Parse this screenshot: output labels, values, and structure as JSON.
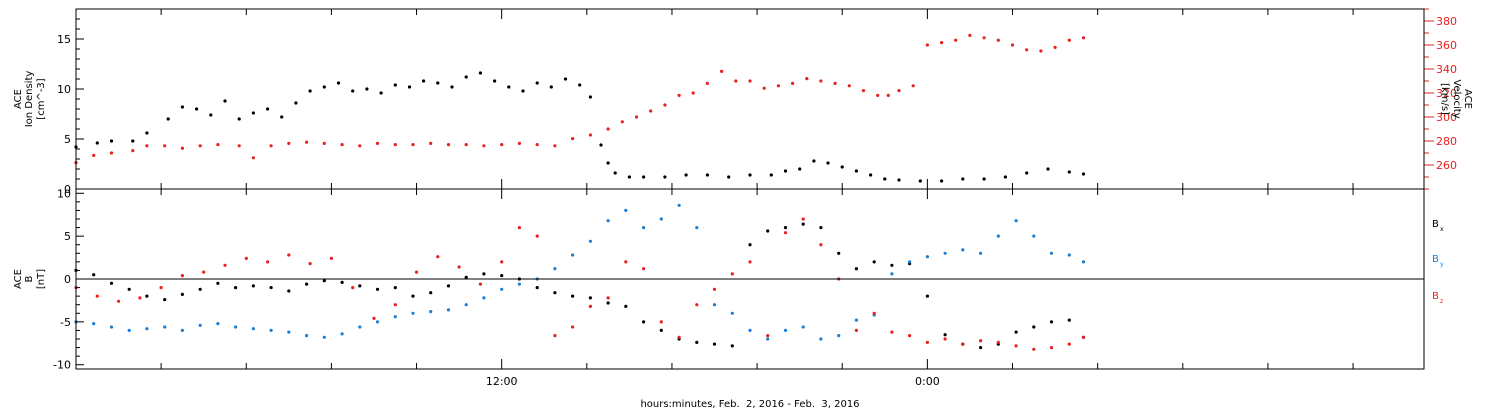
{
  "colors": {
    "black": "#000000",
    "red": "#e8211f",
    "blue": "#1b7fd6"
  },
  "chart_data": [
    {
      "type": "scatter",
      "title": "",
      "xlabel": "hours:minutes, Feb.  2, 2016 - Feb.  3, 2016",
      "x_unit": "hours since 2016-02-02 00:00",
      "x_range": [
        0,
        38
      ],
      "x_major_ticks": [
        {
          "x": 12,
          "label": "12:00"
        },
        {
          "x": 24,
          "label": "0:00"
        }
      ],
      "x_minor_ticks": [
        2.4,
        4.8,
        7.2,
        9.6,
        14.4,
        16.8,
        19.2,
        21.6,
        26.4,
        28.8,
        31.2,
        33.6,
        36.0
      ],
      "left_axis": {
        "label_lines": [
          "ACE",
          "Ion Density",
          "[cm^-3]"
        ],
        "unit": "cm^-3",
        "range": [
          0,
          18
        ],
        "ticks": [
          0,
          5,
          10,
          15
        ]
      },
      "right_axis": {
        "label_lines": [
          "ACE",
          "Velocity",
          "[km/s]"
        ],
        "unit": "km/s",
        "range": [
          240,
          390
        ],
        "ticks": [
          260,
          280,
          300,
          320,
          340,
          360,
          380
        ]
      },
      "series": [
        {
          "name": "Ion Density",
          "axis": "left",
          "color": "#000000",
          "x": [
            0.0,
            0.6,
            1.0,
            1.6,
            2.0,
            2.6,
            3.0,
            3.4,
            3.8,
            4.2,
            4.6,
            5.0,
            5.4,
            5.8,
            6.2,
            6.6,
            7.0,
            7.4,
            7.8,
            8.2,
            8.6,
            9.0,
            9.4,
            9.8,
            10.2,
            10.6,
            11.0,
            11.4,
            11.8,
            12.2,
            12.6,
            13.0,
            13.4,
            13.8,
            14.2,
            14.5,
            14.8,
            15.0,
            15.2,
            15.6,
            16.0,
            16.6,
            17.2,
            17.8,
            18.4,
            19.0,
            19.6,
            20.0,
            20.4,
            20.8,
            21.2,
            21.6,
            22.0,
            22.4,
            22.8,
            23.2,
            23.8,
            24.4,
            25.0,
            25.6,
            26.2,
            26.8,
            27.4,
            28.0,
            28.4
          ],
          "y": [
            4.2,
            4.6,
            4.8,
            4.8,
            5.6,
            7.0,
            8.2,
            8.0,
            7.4,
            8.8,
            7.0,
            7.6,
            8.0,
            7.2,
            8.6,
            9.8,
            10.2,
            10.6,
            9.8,
            10.0,
            9.6,
            10.4,
            10.2,
            10.8,
            10.6,
            10.2,
            11.2,
            11.6,
            10.8,
            10.2,
            9.8,
            10.6,
            10.2,
            11.0,
            10.4,
            9.2,
            4.4,
            2.6,
            1.6,
            1.2,
            1.2,
            1.2,
            1.4,
            1.4,
            1.2,
            1.4,
            1.4,
            1.8,
            2.0,
            2.8,
            2.6,
            2.2,
            1.8,
            1.4,
            1.0,
            0.9,
            0.8,
            0.8,
            1.0,
            1.0,
            1.2,
            1.6,
            2.0,
            1.7,
            1.5
          ]
        },
        {
          "name": "Velocity",
          "axis": "right",
          "color": "#e8211f",
          "x": [
            0.0,
            0.5,
            1.0,
            1.6,
            2.0,
            2.5,
            3.0,
            3.5,
            4.0,
            4.6,
            5.0,
            5.5,
            6.0,
            6.5,
            7.0,
            7.5,
            8.0,
            8.5,
            9.0,
            9.5,
            10.0,
            10.5,
            11.0,
            11.5,
            12.0,
            12.5,
            13.0,
            13.5,
            14.0,
            14.5,
            15.0,
            15.4,
            15.8,
            16.2,
            16.6,
            17.0,
            17.4,
            17.8,
            18.2,
            18.6,
            19.0,
            19.4,
            19.8,
            20.2,
            20.6,
            21.0,
            21.4,
            21.8,
            22.2,
            22.6,
            22.9,
            23.2,
            23.6,
            24.0,
            24.4,
            24.8,
            25.2,
            25.6,
            26.0,
            26.4,
            26.8,
            27.2,
            27.6,
            28.0,
            28.4
          ],
          "y": [
            262,
            268,
            270,
            272,
            276,
            276,
            274,
            276,
            277,
            276,
            266,
            276,
            278,
            279,
            278,
            277,
            276,
            278,
            277,
            277,
            278,
            277,
            277,
            276,
            277,
            278,
            277,
            276,
            282,
            285,
            290,
            296,
            300,
            305,
            310,
            318,
            320,
            328,
            338,
            330,
            330,
            324,
            326,
            328,
            332,
            330,
            328,
            326,
            322,
            318,
            318,
            322,
            326,
            360,
            362,
            364,
            368,
            366,
            364,
            360,
            356,
            355,
            358,
            364,
            366
          ]
        }
      ]
    },
    {
      "type": "scatter",
      "title": "",
      "xlabel": "hours:minutes, Feb.  2, 2016 - Feb.  3, 2016",
      "x_unit": "hours since 2016-02-02 00:00",
      "x_range": [
        0,
        38
      ],
      "x_major_ticks": [
        {
          "x": 12,
          "label": "12:00"
        },
        {
          "x": 24,
          "label": "0:00"
        }
      ],
      "x_minor_ticks": [
        2.4,
        4.8,
        7.2,
        9.6,
        14.4,
        16.8,
        19.2,
        21.6,
        26.4,
        28.8,
        31.2,
        33.6,
        36.0
      ],
      "y_axis": {
        "label_lines": [
          "ACE",
          "B",
          "[nT]"
        ],
        "unit": "nT",
        "range": [
          -10.5,
          10.5
        ],
        "ticks": [
          -10,
          -5,
          0,
          5,
          10
        ],
        "zero_line": true
      },
      "legend": {
        "placement": "right",
        "entries": [
          "Bx",
          "By",
          "Bz"
        ]
      },
      "series": [
        {
          "name": "Bx",
          "color": "#000000",
          "x": [
            0.0,
            0.5,
            1.0,
            1.5,
            2.0,
            2.5,
            3.0,
            3.5,
            4.0,
            4.5,
            5.0,
            5.5,
            6.0,
            6.5,
            7.0,
            7.5,
            8.0,
            8.5,
            9.0,
            9.5,
            10.0,
            10.5,
            11.0,
            11.5,
            12.0,
            12.5,
            13.0,
            13.5,
            14.0,
            14.5,
            15.0,
            15.5,
            16.0,
            16.5,
            17.0,
            17.5,
            18.0,
            18.5,
            19.0,
            19.5,
            20.0,
            20.5,
            21.0,
            21.5,
            22.0,
            22.5,
            23.0,
            23.5,
            24.0,
            24.5,
            25.0,
            25.5,
            26.0,
            26.5,
            27.0,
            27.5,
            28.0,
            28.4
          ],
          "y": [
            1.0,
            0.5,
            -0.5,
            -1.2,
            -2.0,
            -2.4,
            -1.8,
            -1.2,
            -0.5,
            -1.0,
            -0.8,
            -1.0,
            -1.4,
            -0.6,
            -0.2,
            -0.4,
            -0.8,
            -1.2,
            -1.0,
            -2.0,
            -1.6,
            -0.8,
            0.2,
            0.6,
            0.4,
            0.0,
            -1.0,
            -1.6,
            -2.0,
            -2.2,
            -2.8,
            -3.2,
            -5.0,
            -6.0,
            -7.0,
            -7.4,
            -7.6,
            -7.8,
            4.0,
            5.6,
            6.0,
            6.4,
            6.0,
            3.0,
            1.2,
            2.0,
            1.6,
            1.8,
            -2.0,
            -6.5,
            -7.6,
            -8.0,
            -7.6,
            -6.2,
            -5.6,
            -5.0,
            -4.8,
            -6.8
          ]
        },
        {
          "name": "By",
          "color": "#1b7fd6",
          "x": [
            0.0,
            0.5,
            1.0,
            1.5,
            2.0,
            2.5,
            3.0,
            3.5,
            4.0,
            4.5,
            5.0,
            5.5,
            6.0,
            6.5,
            7.0,
            7.5,
            8.0,
            8.5,
            9.0,
            9.5,
            10.0,
            10.5,
            11.0,
            11.5,
            12.0,
            12.5,
            13.0,
            13.5,
            14.0,
            14.5,
            15.0,
            15.5,
            16.0,
            16.5,
            17.0,
            17.5,
            18.0,
            18.5,
            19.0,
            19.5,
            20.0,
            20.5,
            21.0,
            21.5,
            22.0,
            22.5,
            23.0,
            23.5,
            24.0,
            24.5,
            25.0,
            25.5,
            26.0,
            26.5,
            27.0,
            27.5,
            28.0,
            28.4
          ],
          "y": [
            -5.0,
            -5.2,
            -5.6,
            -6.0,
            -5.8,
            -5.6,
            -6.0,
            -5.4,
            -5.2,
            -5.6,
            -5.8,
            -6.0,
            -6.2,
            -6.6,
            -6.8,
            -6.4,
            -5.6,
            -5.0,
            -4.4,
            -4.0,
            -3.8,
            -3.6,
            -3.0,
            -2.2,
            -1.2,
            -0.6,
            0.0,
            1.2,
            2.8,
            4.4,
            6.8,
            8.0,
            6.0,
            7.0,
            8.6,
            6.0,
            -3.0,
            -4.0,
            -6.0,
            -7.0,
            -6.0,
            -5.6,
            -7.0,
            -6.6,
            -4.8,
            -4.2,
            0.6,
            2.0,
            2.6,
            3.0,
            3.4,
            3.0,
            5.0,
            6.8,
            5.0,
            3.0,
            2.8,
            2.0
          ]
        },
        {
          "name": "Bz",
          "color": "#e8211f",
          "x": [
            0.0,
            0.6,
            1.2,
            1.8,
            2.4,
            3.0,
            3.6,
            4.2,
            4.8,
            5.4,
            6.0,
            6.6,
            7.2,
            7.8,
            8.4,
            9.0,
            9.6,
            10.2,
            10.8,
            11.4,
            12.0,
            12.5,
            13.0,
            13.5,
            14.0,
            14.5,
            15.0,
            15.5,
            16.0,
            16.5,
            17.0,
            17.5,
            18.0,
            18.5,
            19.0,
            19.5,
            20.0,
            20.5,
            21.0,
            21.5,
            22.0,
            22.5,
            23.0,
            23.5,
            24.0,
            24.5,
            25.0,
            25.5,
            26.0,
            26.5,
            27.0,
            27.5,
            28.0,
            28.4
          ],
          "y": [
            -1.0,
            -2.0,
            -2.6,
            -2.2,
            -1.0,
            0.4,
            0.8,
            1.6,
            2.4,
            2.0,
            2.8,
            1.8,
            2.4,
            -1.0,
            -4.6,
            -3.0,
            0.8,
            2.6,
            1.4,
            -0.6,
            2.0,
            6.0,
            5.0,
            -6.6,
            -5.6,
            -3.2,
            -2.2,
            2.0,
            1.2,
            -5.0,
            -6.8,
            -3.0,
            -1.2,
            0.6,
            2.0,
            -6.6,
            5.4,
            7.0,
            4.0,
            0.0,
            -6.0,
            -4.0,
            -6.2,
            -6.6,
            -7.4,
            -7.0,
            -7.6,
            -7.2,
            -7.4,
            -7.8,
            -8.2,
            -8.0,
            -7.6,
            -6.8
          ]
        }
      ]
    }
  ]
}
